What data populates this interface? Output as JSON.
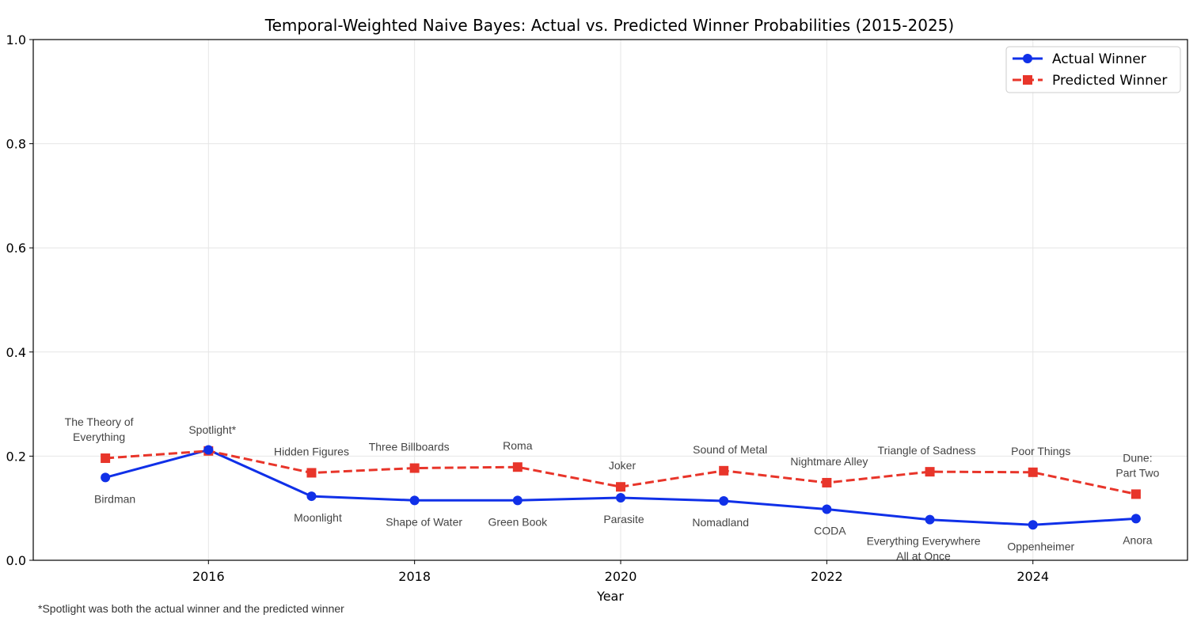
{
  "chart_data": {
    "type": "line",
    "title": "Temporal-Weighted Naive Bayes: Actual vs. Predicted Winner Probabilities (2015-2025)",
    "xlabel": "Year",
    "ylabel": "",
    "xlim": [
      2014.3,
      2025.5
    ],
    "ylim": [
      0.0,
      1.0
    ],
    "xticks": [
      2016,
      2018,
      2020,
      2022,
      2024
    ],
    "yticks": [
      0.0,
      0.2,
      0.4,
      0.6,
      0.8,
      1.0
    ],
    "grid": true,
    "legend_position": "top-right",
    "x": [
      2015,
      2016,
      2017,
      2018,
      2019,
      2020,
      2021,
      2022,
      2023,
      2024,
      2025
    ],
    "series": [
      {
        "name": "Actual Winner",
        "color": "#1030e8",
        "line_style": "solid",
        "marker": "circle",
        "values": [
          0.159,
          0.212,
          0.123,
          0.115,
          0.115,
          0.12,
          0.114,
          0.098,
          0.078,
          0.068,
          0.08
        ],
        "labels": [
          "Birdman",
          "",
          "Moonlight",
          "Shape of Water",
          "Green Book",
          "Parasite",
          "Nomadland",
          "CODA",
          "Everything Everywhere\nAll at Once",
          "Oppenheimer",
          "Anora"
        ]
      },
      {
        "name": "Predicted Winner",
        "color": "#e8352a",
        "line_style": "dashed",
        "marker": "square",
        "values": [
          0.196,
          0.21,
          0.168,
          0.177,
          0.179,
          0.141,
          0.172,
          0.149,
          0.17,
          0.169,
          0.127
        ],
        "labels": [
          "The Theory of\nEverything",
          "Spotlight*",
          "Hidden Figures",
          "Three Billboards",
          "Roma",
          "Joker",
          "Sound of Metal",
          "Nightmare Alley",
          "Triangle of Sadness",
          "Poor Things",
          "Dune:\nPart Two"
        ]
      }
    ],
    "footnote": "*Spotlight was both the actual winner and the predicted winner"
  }
}
